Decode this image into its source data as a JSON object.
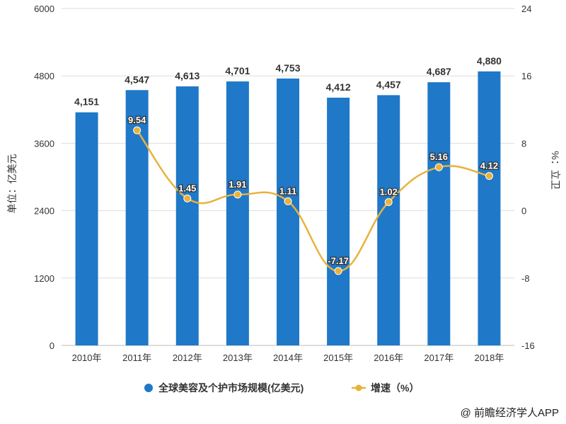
{
  "chart_data": {
    "type": "bar+line",
    "categories": [
      "2010年",
      "2011年",
      "2012年",
      "2013年",
      "2014年",
      "2015年",
      "2016年",
      "2017年",
      "2018年"
    ],
    "series": [
      {
        "name": "全球美容及个护市场规模(亿美元)",
        "type": "bar",
        "axis": "left",
        "color": "#1f78c8",
        "values": [
          4151,
          4547,
          4613,
          4701,
          4753,
          4412,
          4457,
          4687,
          4880
        ],
        "labels": [
          "4,151",
          "4,547",
          "4,613",
          "4,701",
          "4,753",
          "4,412",
          "4,457",
          "4,687",
          "4,880"
        ]
      },
      {
        "name": "增速（%）",
        "type": "line",
        "axis": "right",
        "color": "#e8b23c",
        "values": [
          null,
          9.54,
          1.45,
          1.91,
          1.11,
          -7.17,
          1.02,
          5.16,
          4.12
        ],
        "labels": [
          "",
          "9.54",
          "1.45",
          "1.91",
          "1.11",
          "-7.17",
          "1.02",
          "5.16",
          "4.12"
        ]
      }
    ],
    "y_left": {
      "label": "单位：亿美元",
      "range": [
        0,
        6000
      ],
      "ticks": [
        "0",
        "1200",
        "2400",
        "3600",
        "4800",
        "6000"
      ]
    },
    "y_right": {
      "label": "%：立卫",
      "range": [
        -16,
        24
      ],
      "ticks": [
        "-16",
        "-8",
        "0",
        "8",
        "16",
        "24"
      ]
    },
    "grid": true,
    "legend_position": "bottom"
  },
  "credit": "@ 前瞻经济学人APP"
}
